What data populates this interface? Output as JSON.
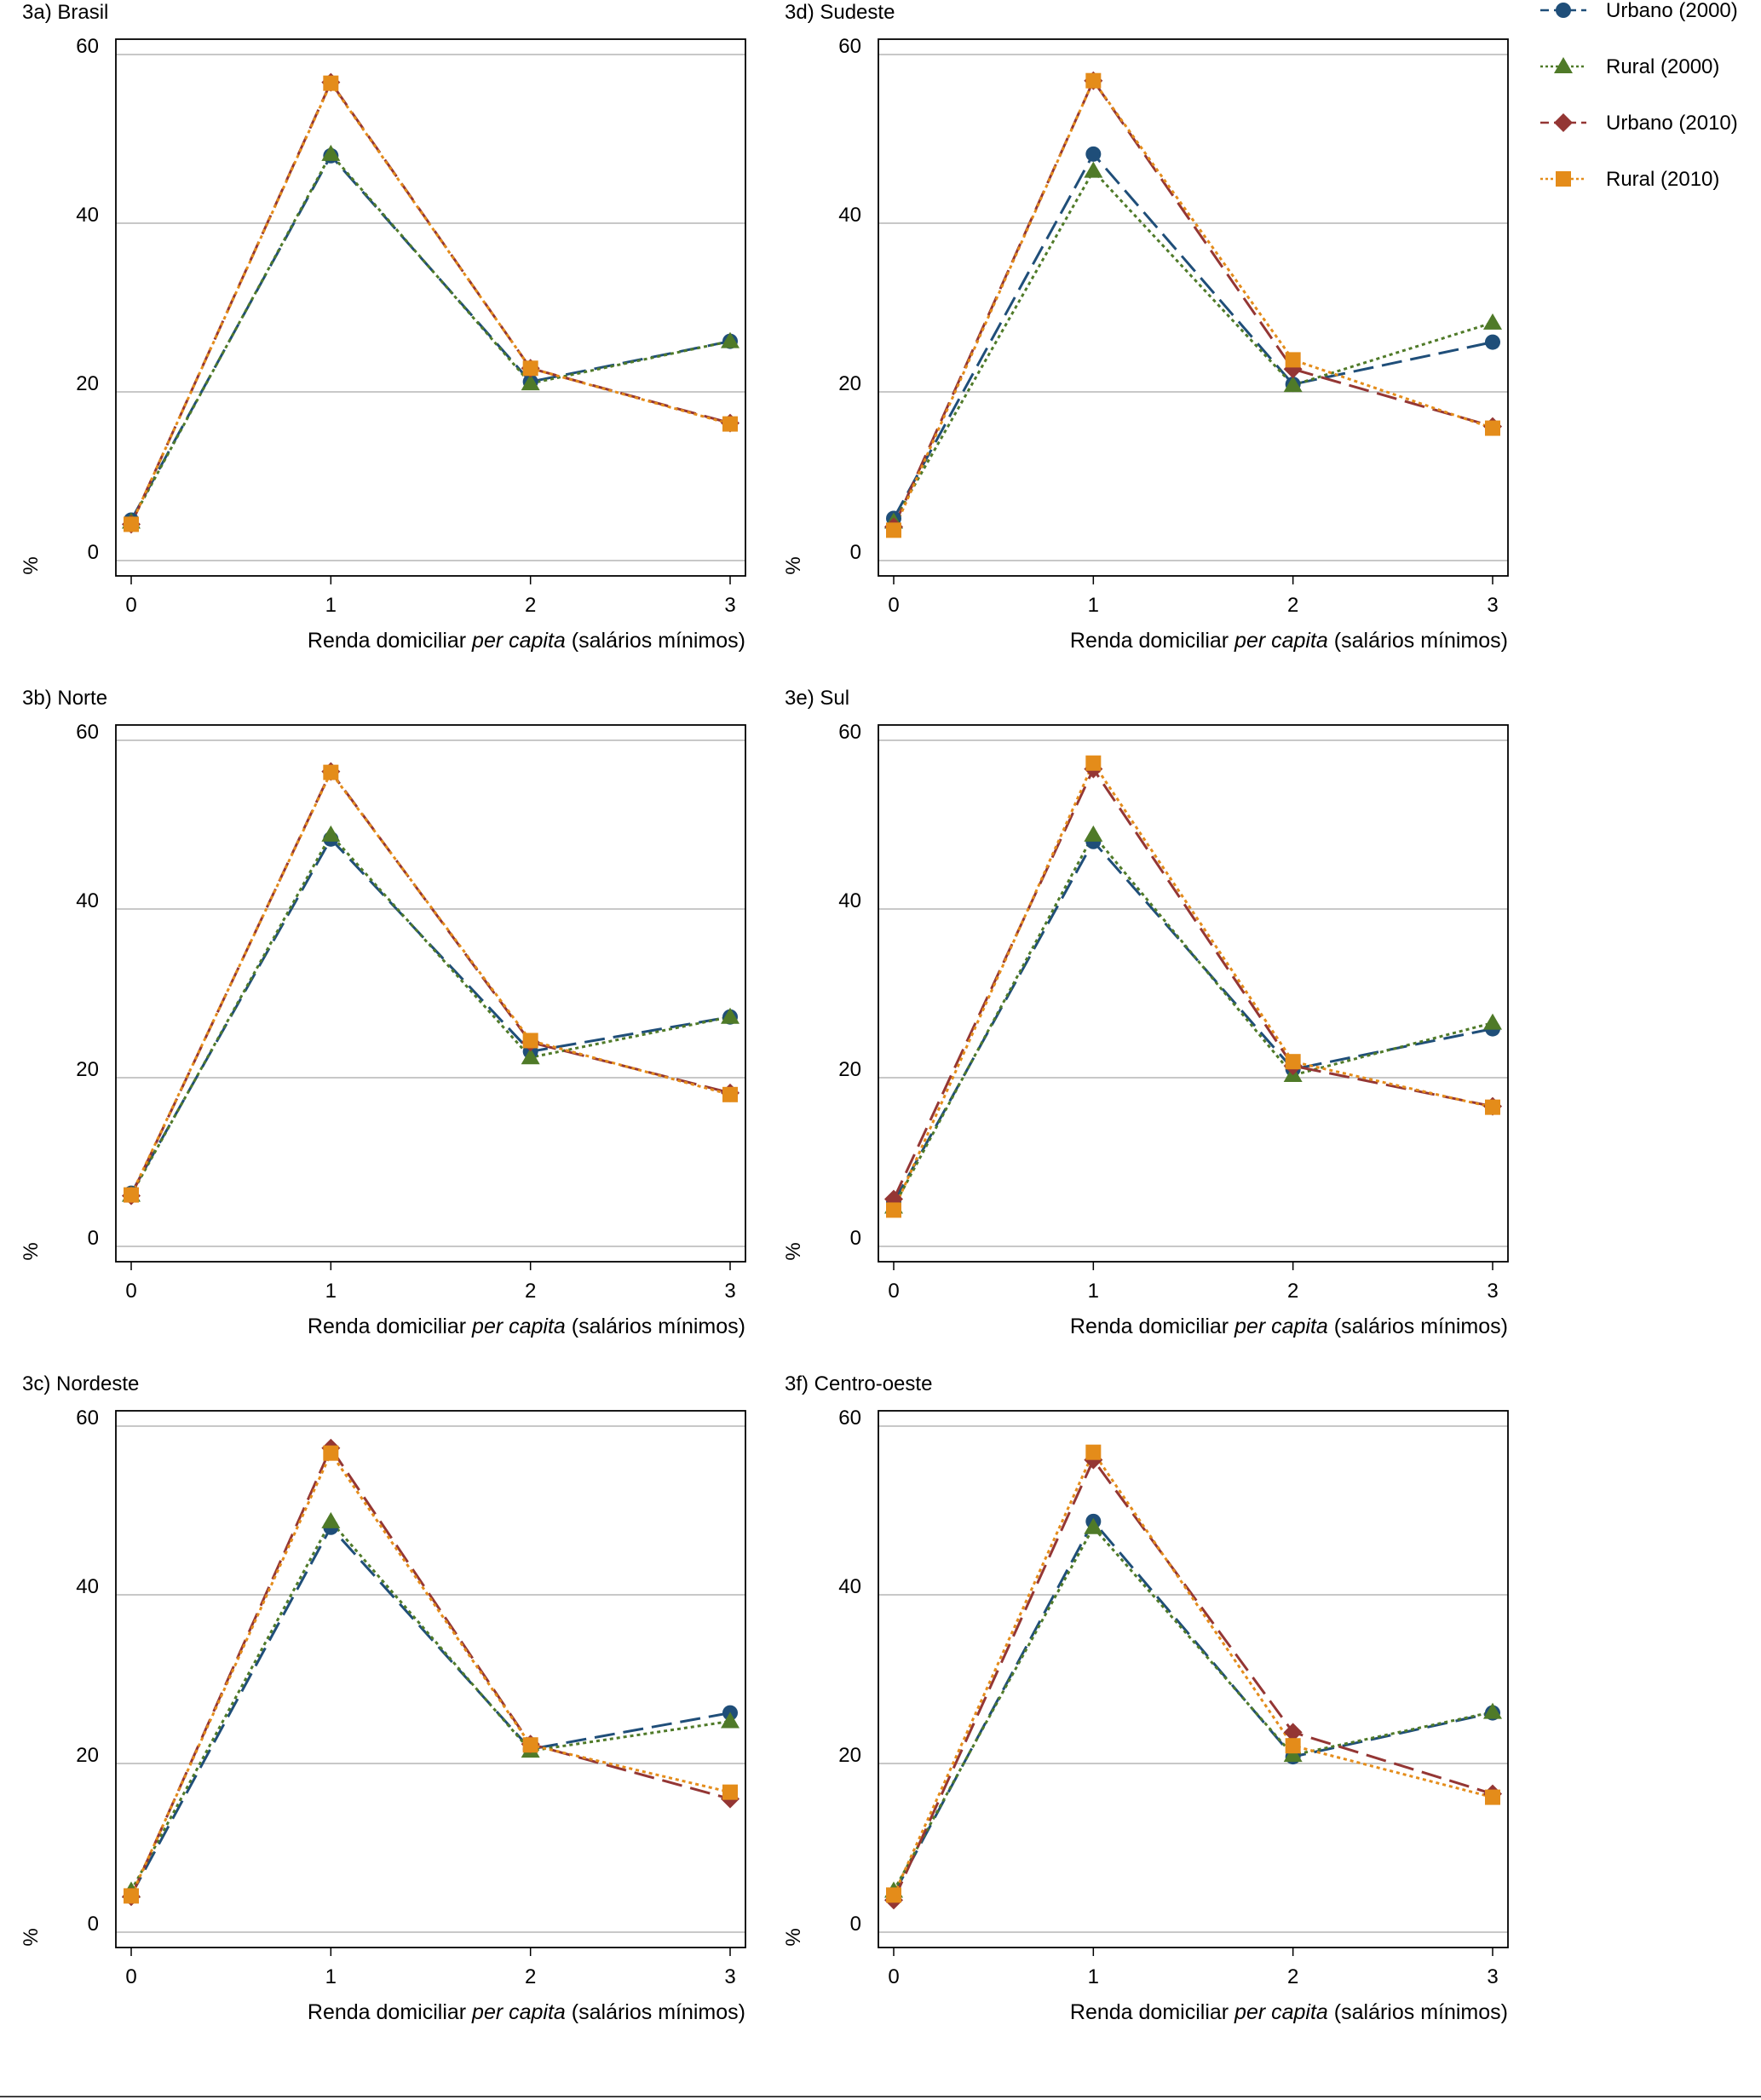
{
  "figure": {
    "colors": {
      "urbano_2000": "#1f4e79",
      "rural_2000": "#4f7a28",
      "urbano_2010": "#943634",
      "rural_2010": "#e48c1a"
    }
  },
  "chart_data": [
    {
      "type": "line",
      "title": "3a) Brasil",
      "xlabel": {
        "pre": "Renda domiciliar ",
        "italic": "per capita",
        "post": " (salários mínimos)"
      },
      "ylabel": "%",
      "x": [
        0,
        1,
        2,
        3
      ],
      "xlim": [
        0,
        3
      ],
      "ylim": [
        0,
        60
      ],
      "yticks": [
        0,
        20,
        40,
        60
      ],
      "grid": true,
      "series": [
        {
          "name": "Urbano (2000)",
          "values": [
            4.8,
            48.0,
            21.2,
            26.0
          ]
        },
        {
          "name": "Rural (2000)",
          "values": [
            4.6,
            48.2,
            21.0,
            26.0
          ]
        },
        {
          "name": "Urbano (2010)",
          "values": [
            4.3,
            56.7,
            22.8,
            16.3
          ]
        },
        {
          "name": "Rural (2010)",
          "values": [
            4.3,
            56.6,
            22.8,
            16.2
          ]
        }
      ]
    },
    {
      "type": "line",
      "title": "3b) Norte",
      "xlabel": {
        "pre": "Renda domiciliar ",
        "italic": "per capita",
        "post": " (salários mínimos)"
      },
      "ylabel": "%",
      "x": [
        0,
        1,
        2,
        3
      ],
      "xlim": [
        0,
        3
      ],
      "ylim": [
        0,
        60
      ],
      "yticks": [
        0,
        20,
        40,
        60
      ],
      "grid": true,
      "series": [
        {
          "name": "Urbano (2000)",
          "values": [
            6.3,
            48.3,
            23.1,
            27.2
          ]
        },
        {
          "name": "Rural (2000)",
          "values": [
            6.1,
            48.8,
            22.4,
            27.2
          ]
        },
        {
          "name": "Urbano (2010)",
          "values": [
            6.0,
            56.3,
            24.2,
            18.2
          ]
        },
        {
          "name": "Rural (2010)",
          "values": [
            6.1,
            56.2,
            24.4,
            18.0
          ]
        }
      ]
    },
    {
      "type": "line",
      "title": "3c) Nordeste",
      "xlabel": {
        "pre": "Renda domiciliar ",
        "italic": "per capita",
        "post": " (salários mínimos)"
      },
      "ylabel": "%",
      "x": [
        0,
        1,
        2,
        3
      ],
      "xlim": [
        0,
        3
      ],
      "ylim": [
        0,
        60
      ],
      "yticks": [
        0,
        20,
        40,
        60
      ],
      "grid": true,
      "series": [
        {
          "name": "Urbano (2000)",
          "values": [
            4.4,
            48.0,
            21.7,
            26.0
          ]
        },
        {
          "name": "Rural (2000)",
          "values": [
            4.9,
            48.7,
            21.5,
            25.0
          ]
        },
        {
          "name": "Urbano (2010)",
          "values": [
            4.2,
            57.4,
            22.3,
            15.8
          ]
        },
        {
          "name": "Rural (2010)",
          "values": [
            4.3,
            56.8,
            22.2,
            16.6
          ]
        }
      ]
    },
    {
      "type": "line",
      "title": "3d) Sudeste",
      "xlabel": {
        "pre": "Renda domiciliar ",
        "italic": "per capita",
        "post": " (salários mínimos)"
      },
      "ylabel": "%",
      "x": [
        0,
        1,
        2,
        3
      ],
      "xlim": [
        0,
        3
      ],
      "ylim": [
        0,
        60
      ],
      "yticks": [
        0,
        20,
        40,
        60
      ],
      "grid": true,
      "series": [
        {
          "name": "Urbano (2000)",
          "values": [
            5.0,
            48.2,
            20.9,
            25.9
          ]
        },
        {
          "name": "Rural (2000)",
          "values": [
            4.6,
            46.2,
            20.8,
            28.2
          ]
        },
        {
          "name": "Urbano (2010)",
          "values": [
            4.0,
            56.9,
            22.7,
            15.9
          ]
        },
        {
          "name": "Rural (2010)",
          "values": [
            3.6,
            56.9,
            23.8,
            15.7
          ]
        }
      ]
    },
    {
      "type": "line",
      "title": "3e) Sul",
      "xlabel": {
        "pre": "Renda domiciliar ",
        "italic": "per capita",
        "post": " (salários mínimos)"
      },
      "ylabel": "%",
      "x": [
        0,
        1,
        2,
        3
      ],
      "xlim": [
        0,
        3
      ],
      "ylim": [
        0,
        60
      ],
      "yticks": [
        0,
        20,
        40,
        60
      ],
      "grid": true,
      "series": [
        {
          "name": "Urbano (2000)",
          "values": [
            5.2,
            48.0,
            21.0,
            25.8
          ]
        },
        {
          "name": "Rural (2000)",
          "values": [
            4.7,
            48.8,
            20.3,
            26.5
          ]
        },
        {
          "name": "Urbano (2010)",
          "values": [
            5.6,
            56.6,
            21.4,
            16.6
          ]
        },
        {
          "name": "Rural (2010)",
          "values": [
            4.3,
            57.3,
            21.9,
            16.5
          ]
        }
      ]
    },
    {
      "type": "line",
      "title": "3f) Centro-oeste",
      "xlabel": {
        "pre": "Renda domiciliar ",
        "italic": "per capita",
        "post": " (salários mínimos)"
      },
      "ylabel": "%",
      "x": [
        0,
        1,
        2,
        3
      ],
      "xlim": [
        0,
        3
      ],
      "ylim": [
        0,
        60
      ],
      "yticks": [
        0,
        20,
        40,
        60
      ],
      "grid": true,
      "series": [
        {
          "name": "Urbano (2000)",
          "values": [
            4.5,
            48.7,
            20.8,
            26.0
          ]
        },
        {
          "name": "Rural (2000)",
          "values": [
            4.9,
            48.0,
            21.0,
            26.1
          ]
        },
        {
          "name": "Urbano (2010)",
          "values": [
            3.8,
            56.0,
            23.7,
            16.4
          ]
        },
        {
          "name": "Rural (2010)",
          "values": [
            4.4,
            56.9,
            22.1,
            16.0
          ]
        }
      ]
    }
  ]
}
